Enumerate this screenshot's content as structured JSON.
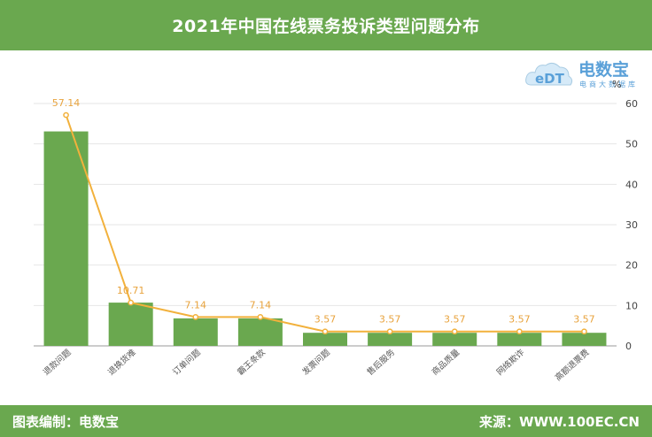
{
  "header": {
    "title": "2021年中国在线票务投诉类型问题分布"
  },
  "footer": {
    "left": "图表编制：电数宝",
    "right": "来源：WWW.100EC.CN"
  },
  "logo": {
    "name": "电数宝",
    "sub": "电商大数据库",
    "mark": "eDT"
  },
  "colors": {
    "bar": "#6aa84f",
    "line": "#f2b13c",
    "header": "#6aa84f"
  },
  "chart_data": {
    "type": "bar",
    "categories": [
      "退款问题",
      "退换货难",
      "订单问题",
      "霸王条款",
      "发票问题",
      "售后服务",
      "商品质量",
      "网络欺诈",
      "高额退票费"
    ],
    "values": [
      57.14,
      10.71,
      7.14,
      7.14,
      3.57,
      3.57,
      3.57,
      3.57,
      3.57
    ],
    "value_labels": [
      "57.14",
      "10.71",
      "7.14",
      "7.14",
      "3.57",
      "3.57",
      "3.57",
      "3.57",
      "3.57"
    ],
    "overlay": "line",
    "yunit": "%",
    "ylim": [
      0,
      60
    ],
    "yticks": [
      "0",
      "10",
      "20",
      "30",
      "40",
      "50",
      "60"
    ],
    "grid": true,
    "yaxis_position": "right"
  }
}
